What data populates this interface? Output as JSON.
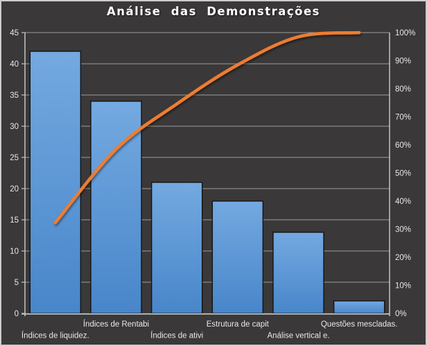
{
  "chart": {
    "colors": {
      "background": "#3a3838",
      "outer_border": "#cdcbcb",
      "gridline": "#9d9d9d",
      "axis_line": "#c6c6c6",
      "label_text": "#e9e8e8",
      "title_text": "#ffffff",
      "bar_fill_top": "#74a9e0",
      "bar_fill_bottom": "#4886ca",
      "bar_border": "#141414",
      "line_color": "#ed7d31"
    }
  },
  "chart_data": {
    "type": "bar",
    "subtype": "pareto-combo",
    "title": "Análise das Demonstrações",
    "categories": [
      "Índices de liquidez.",
      "Índices de Rentabi",
      "Índices de ativi",
      "Estrutura de capit",
      "Análise vertical e.",
      "Questões mescladas."
    ],
    "series": [
      {
        "name": "bar-frequency",
        "type": "bar",
        "axis": "left",
        "values": [
          42,
          34,
          21,
          18,
          13,
          2
        ]
      },
      {
        "name": "cumulative-percent-line",
        "type": "line",
        "axis": "right",
        "smoothed": true,
        "values": [
          32.3,
          58.5,
          74.6,
          88.5,
          98.5,
          100
        ]
      }
    ],
    "left_axis": {
      "min": 0,
      "max": 45,
      "step": 5,
      "tick_labels": [
        "0",
        "5",
        "10",
        "15",
        "20",
        "25",
        "30",
        "35",
        "40",
        "45"
      ]
    },
    "right_axis": {
      "min": 0,
      "max": 100,
      "step": 10,
      "tick_labels": [
        "0%",
        "10%",
        "20%",
        "30%",
        "40%",
        "50%",
        "60%",
        "70%",
        "80%",
        "90%",
        "100%"
      ]
    },
    "grid": true,
    "legend": false,
    "label_rows": [
      "lower",
      "upper",
      "lower",
      "upper",
      "lower",
      "upper"
    ]
  }
}
